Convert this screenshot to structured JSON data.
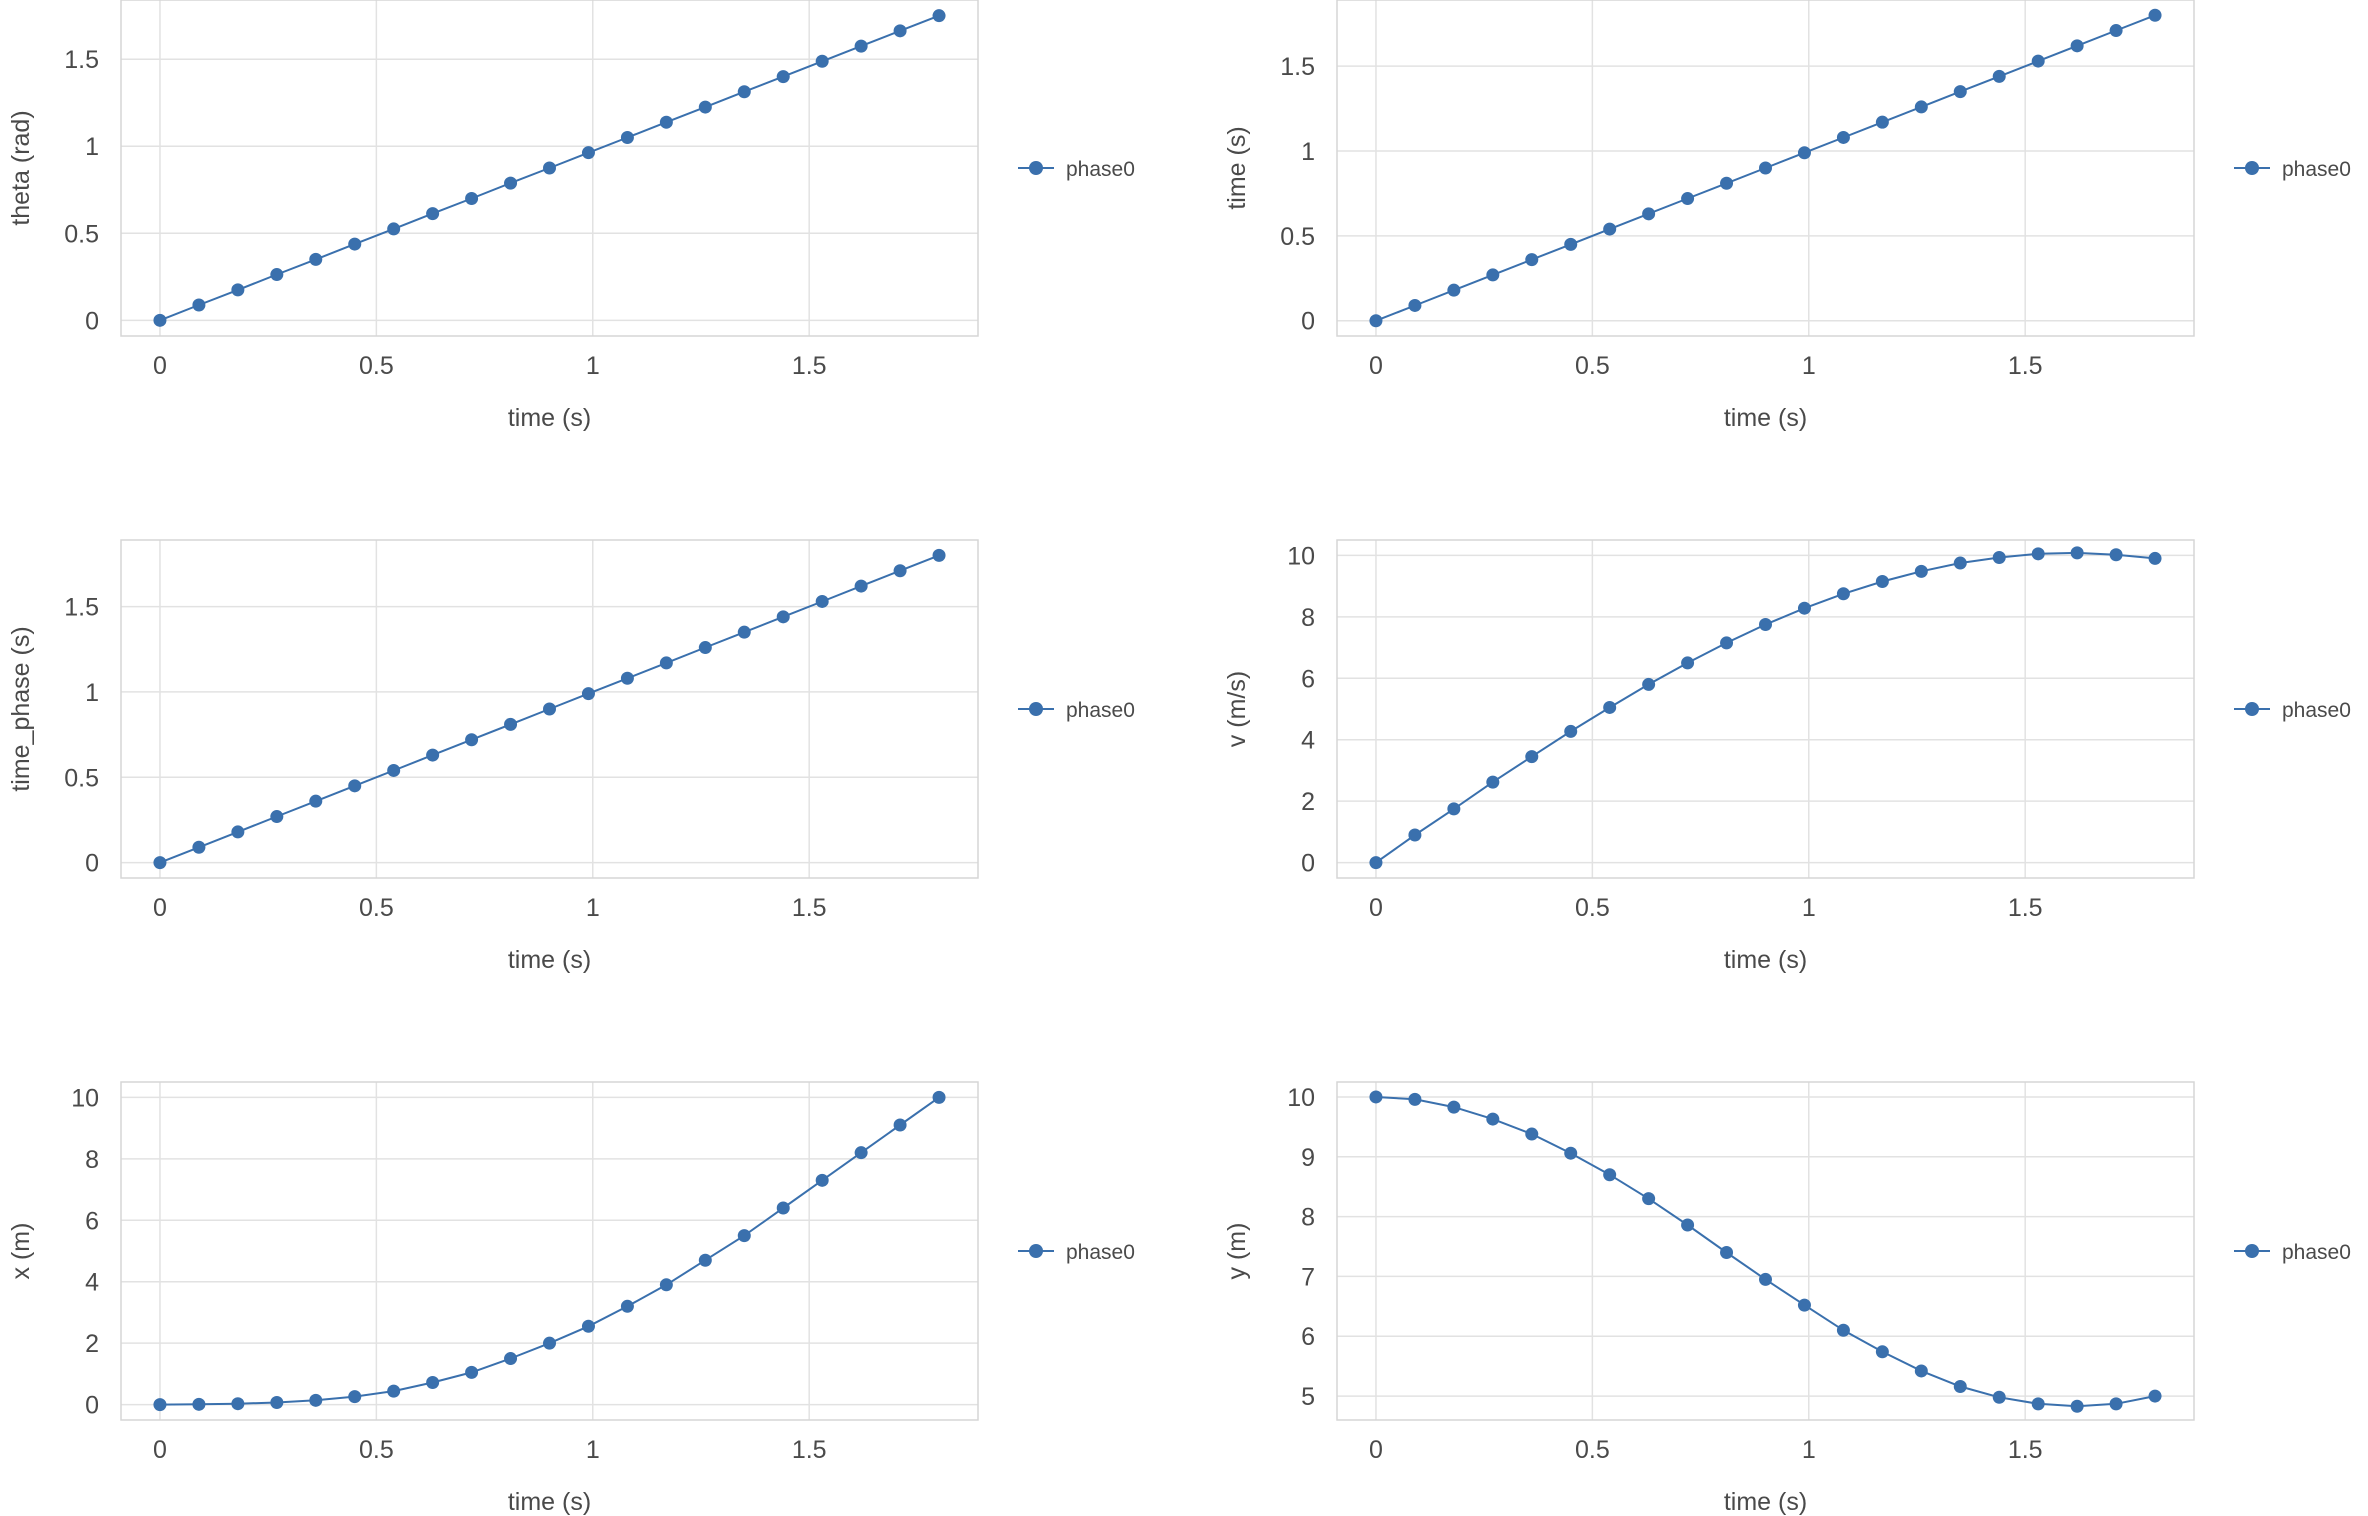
{
  "chart_data": [
    {
      "type": "line",
      "xlabel": "time (s)",
      "ylabel": "theta (rad)",
      "xlim": [
        -0.09,
        1.89
      ],
      "ylim": [
        -0.09,
        1.84
      ],
      "xticks": [
        0,
        0.5,
        1,
        1.5
      ],
      "yticks": [
        0,
        0.5,
        1,
        1.5
      ],
      "grid": true,
      "legend_position": "right",
      "x": [
        0,
        0.09,
        0.18,
        0.27,
        0.36,
        0.45,
        0.54,
        0.63,
        0.72,
        0.81,
        0.9,
        0.99,
        1.08,
        1.17,
        1.26,
        1.35,
        1.44,
        1.53,
        1.62,
        1.71,
        1.8
      ],
      "series": [
        {
          "name": "phase0",
          "values": [
            0,
            0.088,
            0.175,
            0.263,
            0.35,
            0.438,
            0.525,
            0.613,
            0.7,
            0.788,
            0.875,
            0.963,
            1.05,
            1.138,
            1.225,
            1.313,
            1.4,
            1.488,
            1.575,
            1.663,
            1.75
          ]
        }
      ]
    },
    {
      "type": "line",
      "xlabel": "time (s)",
      "ylabel": "time (s)",
      "xlim": [
        -0.09,
        1.89
      ],
      "ylim": [
        -0.09,
        1.89
      ],
      "xticks": [
        0,
        0.5,
        1,
        1.5
      ],
      "yticks": [
        0,
        0.5,
        1,
        1.5
      ],
      "grid": true,
      "legend_position": "right",
      "x": [
        0,
        0.09,
        0.18,
        0.27,
        0.36,
        0.45,
        0.54,
        0.63,
        0.72,
        0.81,
        0.9,
        0.99,
        1.08,
        1.17,
        1.26,
        1.35,
        1.44,
        1.53,
        1.62,
        1.71,
        1.8
      ],
      "series": [
        {
          "name": "phase0",
          "values": [
            0,
            0.09,
            0.18,
            0.27,
            0.36,
            0.45,
            0.54,
            0.63,
            0.72,
            0.81,
            0.9,
            0.99,
            1.08,
            1.17,
            1.26,
            1.35,
            1.44,
            1.53,
            1.62,
            1.71,
            1.8
          ]
        }
      ]
    },
    {
      "type": "line",
      "xlabel": "time (s)",
      "ylabel": "time_phase (s)",
      "xlim": [
        -0.09,
        1.89
      ],
      "ylim": [
        -0.09,
        1.89
      ],
      "xticks": [
        0,
        0.5,
        1,
        1.5
      ],
      "yticks": [
        0,
        0.5,
        1,
        1.5
      ],
      "grid": true,
      "legend_position": "right",
      "x": [
        0,
        0.09,
        0.18,
        0.27,
        0.36,
        0.45,
        0.54,
        0.63,
        0.72,
        0.81,
        0.9,
        0.99,
        1.08,
        1.17,
        1.26,
        1.35,
        1.44,
        1.53,
        1.62,
        1.71,
        1.8
      ],
      "series": [
        {
          "name": "phase0",
          "values": [
            0,
            0.09,
            0.18,
            0.27,
            0.36,
            0.45,
            0.54,
            0.63,
            0.72,
            0.81,
            0.9,
            0.99,
            1.08,
            1.17,
            1.26,
            1.35,
            1.44,
            1.53,
            1.62,
            1.71,
            1.8
          ]
        }
      ]
    },
    {
      "type": "line",
      "xlabel": "time (s)",
      "ylabel": "v (m/s)",
      "xlim": [
        -0.09,
        1.89
      ],
      "ylim": [
        -0.5,
        10.5
      ],
      "xticks": [
        0,
        0.5,
        1,
        1.5
      ],
      "yticks": [
        0,
        2,
        4,
        6,
        8,
        10
      ],
      "grid": true,
      "legend_position": "right",
      "x": [
        0,
        0.09,
        0.18,
        0.27,
        0.36,
        0.45,
        0.54,
        0.63,
        0.72,
        0.81,
        0.9,
        0.99,
        1.08,
        1.17,
        1.26,
        1.35,
        1.44,
        1.53,
        1.62,
        1.71,
        1.8
      ],
      "series": [
        {
          "name": "phase0",
          "values": [
            0,
            0.9,
            1.75,
            2.62,
            3.45,
            4.27,
            5.05,
            5.8,
            6.5,
            7.15,
            7.75,
            8.28,
            8.75,
            9.15,
            9.48,
            9.75,
            9.93,
            10.05,
            10.08,
            10.02,
            9.9
          ]
        }
      ]
    },
    {
      "type": "line",
      "xlabel": "time (s)",
      "ylabel": "x (m)",
      "xlim": [
        -0.09,
        1.89
      ],
      "ylim": [
        -0.5,
        10.5
      ],
      "xticks": [
        0,
        0.5,
        1,
        1.5
      ],
      "yticks": [
        0,
        2,
        4,
        6,
        8,
        10
      ],
      "grid": true,
      "legend_position": "right",
      "x": [
        0,
        0.09,
        0.18,
        0.27,
        0.36,
        0.45,
        0.54,
        0.63,
        0.72,
        0.81,
        0.9,
        0.99,
        1.08,
        1.17,
        1.26,
        1.35,
        1.44,
        1.53,
        1.62,
        1.71,
        1.8
      ],
      "series": [
        {
          "name": "phase0",
          "values": [
            0,
            0.01,
            0.03,
            0.07,
            0.14,
            0.26,
            0.44,
            0.72,
            1.05,
            1.5,
            2.0,
            2.55,
            3.2,
            3.9,
            4.7,
            5.5,
            6.4,
            7.3,
            8.2,
            9.1,
            10.0
          ]
        }
      ]
    },
    {
      "type": "line",
      "xlabel": "time (s)",
      "ylabel": "y (m)",
      "xlim": [
        -0.09,
        1.89
      ],
      "ylim": [
        4.6,
        10.25
      ],
      "xticks": [
        0,
        0.5,
        1,
        1.5
      ],
      "yticks": [
        5,
        6,
        7,
        8,
        9,
        10
      ],
      "grid": true,
      "legend_position": "right",
      "x": [
        0,
        0.09,
        0.18,
        0.27,
        0.36,
        0.45,
        0.54,
        0.63,
        0.72,
        0.81,
        0.9,
        0.99,
        1.08,
        1.17,
        1.26,
        1.35,
        1.44,
        1.53,
        1.62,
        1.71,
        1.8
      ],
      "series": [
        {
          "name": "phase0",
          "values": [
            10.0,
            9.96,
            9.83,
            9.63,
            9.38,
            9.06,
            8.7,
            8.3,
            7.86,
            7.4,
            6.95,
            6.52,
            6.1,
            5.74,
            5.42,
            5.16,
            4.98,
            4.87,
            4.83,
            4.87,
            5.0
          ]
        }
      ]
    }
  ],
  "colors": {
    "series": "#3a70ad",
    "grid": "#e2e2e2",
    "frame": "#d6d6d6",
    "text": "#4a4a4a"
  }
}
